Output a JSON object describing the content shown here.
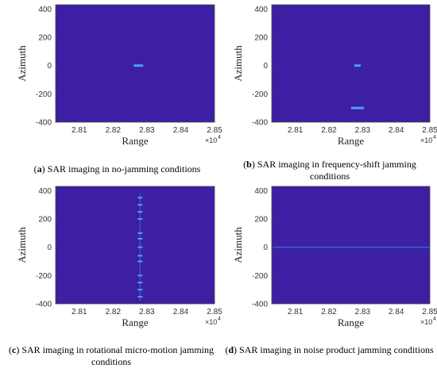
{
  "chart_data": [
    {
      "type": "heatmap",
      "panel_letter": "a",
      "caption": "SAR imaging in no-jamming conditions",
      "xlabel": "Range",
      "ylabel": "Azimuth",
      "x_multiplier": "×10",
      "x_multiplier_exp": "4",
      "xlim": [
        28030,
        28500
      ],
      "ylim": [
        -400,
        430
      ],
      "xticks": [
        "2.81",
        "2.82",
        "2.83",
        "2.84",
        "2.85"
      ],
      "xtick_values": [
        28100,
        28200,
        28300,
        28400,
        28500
      ],
      "yticks": [
        "-400",
        "-200",
        "0",
        "200",
        "400"
      ],
      "ytick_values": [
        -400,
        -200,
        0,
        200,
        400
      ],
      "background_color": "#3d1fa3",
      "points": [
        {
          "x": 28275,
          "y": 0,
          "w": 12,
          "h": 3
        }
      ],
      "lines": []
    },
    {
      "type": "heatmap",
      "panel_letter": "b",
      "caption": "SAR imaging in frequency-shift jamming conditions",
      "xlabel": "Range",
      "ylabel": "Azimuth",
      "x_multiplier": "×10",
      "x_multiplier_exp": "4",
      "xlim": [
        28030,
        28500
      ],
      "ylim": [
        -400,
        430
      ],
      "xticks": [
        "2.81",
        "2.82",
        "2.83",
        "2.84",
        "2.85"
      ],
      "xtick_values": [
        28100,
        28200,
        28300,
        28400,
        28500
      ],
      "yticks": [
        "-400",
        "-200",
        "0",
        "200",
        "400"
      ],
      "ytick_values": [
        -400,
        -200,
        0,
        200,
        400
      ],
      "background_color": "#3d1fa3",
      "points": [
        {
          "x": 28285,
          "y": 0,
          "w": 8,
          "h": 3
        },
        {
          "x": 28285,
          "y": -300,
          "w": 16,
          "h": 3
        }
      ],
      "lines": []
    },
    {
      "type": "heatmap",
      "panel_letter": "c",
      "caption": "SAR imaging in rotational micro-motion jamming conditions",
      "xlabel": "Range",
      "ylabel": "Azimuth",
      "x_multiplier": "×10",
      "x_multiplier_exp": "4",
      "xlim": [
        28030,
        28500
      ],
      "ylim": [
        -400,
        430
      ],
      "xticks": [
        "2.81",
        "2.82",
        "2.83",
        "2.84",
        "2.85"
      ],
      "xtick_values": [
        28100,
        28200,
        28300,
        28400,
        28500
      ],
      "yticks": [
        "-400",
        "-200",
        "0",
        "200",
        "400"
      ],
      "ytick_values": [
        -400,
        -200,
        0,
        200,
        400
      ],
      "background_color": "#3d1fa3",
      "points": [
        {
          "x": 28280,
          "y": 350,
          "w": 6,
          "h": 2
        },
        {
          "x": 28280,
          "y": 300,
          "w": 6,
          "h": 2
        },
        {
          "x": 28280,
          "y": 250,
          "w": 6,
          "h": 2
        },
        {
          "x": 28280,
          "y": 200,
          "w": 6,
          "h": 2
        },
        {
          "x": 28280,
          "y": 100,
          "w": 6,
          "h": 2
        },
        {
          "x": 28280,
          "y": 60,
          "w": 6,
          "h": 2
        },
        {
          "x": 28280,
          "y": 0,
          "w": 6,
          "h": 2
        },
        {
          "x": 28280,
          "y": -60,
          "w": 6,
          "h": 2
        },
        {
          "x": 28280,
          "y": -100,
          "w": 6,
          "h": 2
        },
        {
          "x": 28280,
          "y": -200,
          "w": 6,
          "h": 2
        },
        {
          "x": 28280,
          "y": -250,
          "w": 6,
          "h": 2
        },
        {
          "x": 28280,
          "y": -300,
          "w": 6,
          "h": 2
        },
        {
          "x": 28280,
          "y": -350,
          "w": 6,
          "h": 2
        }
      ],
      "lines": [
        {
          "x1": 28280,
          "y1": -380,
          "x2": 28280,
          "y2": 380
        }
      ]
    },
    {
      "type": "heatmap",
      "panel_letter": "d",
      "caption": "SAR imaging in noise product jamming conditions",
      "xlabel": "Range",
      "ylabel": "Azimuth",
      "x_multiplier": "×10",
      "x_multiplier_exp": "4",
      "xlim": [
        28030,
        28500
      ],
      "ylim": [
        -400,
        430
      ],
      "xticks": [
        "2.81",
        "2.82",
        "2.83",
        "2.84",
        "2.85"
      ],
      "xtick_values": [
        28100,
        28200,
        28300,
        28400,
        28500
      ],
      "yticks": [
        "-400",
        "-200",
        "0",
        "200",
        "400"
      ],
      "ytick_values": [
        -400,
        -200,
        0,
        200,
        400
      ],
      "background_color": "#3d1fa3",
      "points": [],
      "lines": [
        {
          "x1": 28030,
          "y1": 0,
          "x2": 28500,
          "y2": 0
        }
      ]
    }
  ]
}
